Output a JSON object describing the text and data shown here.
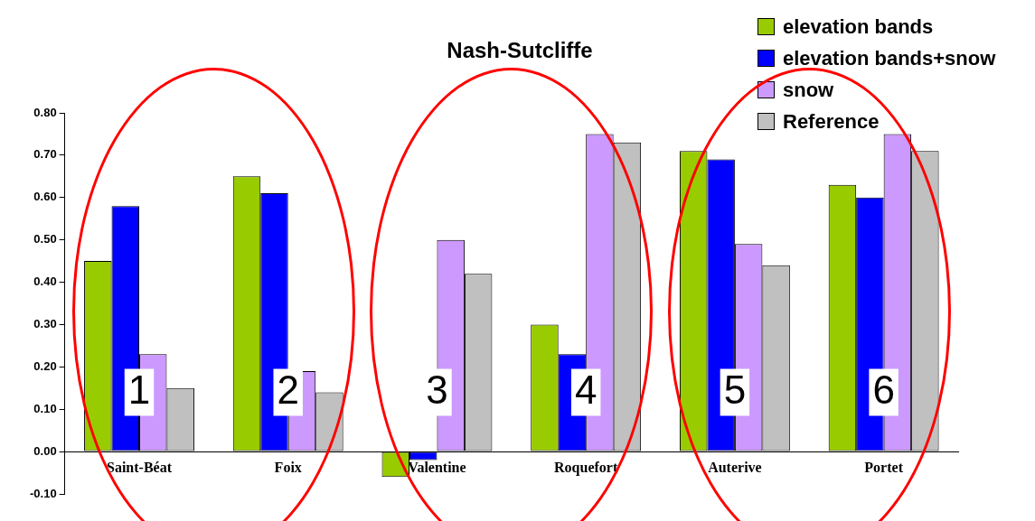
{
  "chart_data": {
    "type": "bar",
    "title": "Nash-Sutcliffe",
    "categories": [
      "Saint-Béat",
      "Foix",
      "Valentine",
      "Roquefort",
      "Auterive",
      "Portet"
    ],
    "series": [
      {
        "name": "elevation bands",
        "color": "#99cc00",
        "values": [
          0.45,
          0.65,
          -0.06,
          0.3,
          0.71,
          0.63
        ]
      },
      {
        "name": "elevation bands+snow",
        "color": "#0000ff",
        "values": [
          0.58,
          0.61,
          -0.02,
          0.23,
          0.69,
          0.6
        ]
      },
      {
        "name": "snow",
        "color": "#cc99ff",
        "values": [
          0.23,
          0.19,
          0.5,
          0.75,
          0.49,
          0.75
        ]
      },
      {
        "name": "Reference",
        "color": "#c0c0c0",
        "values": [
          0.15,
          0.14,
          0.42,
          0.73,
          0.44,
          0.71
        ]
      }
    ],
    "ylim": [
      -0.1,
      0.8
    ],
    "yticks": [
      {
        "value": -0.1,
        "label": "-0.10"
      },
      {
        "value": 0,
        "label": "0.00"
      },
      {
        "value": 0.1,
        "label": "0.10"
      },
      {
        "value": 0.2,
        "label": "0.20"
      },
      {
        "value": 0.3,
        "label": "0.30"
      },
      {
        "value": 0.4,
        "label": "0.40"
      },
      {
        "value": 0.5,
        "label": "0.50"
      },
      {
        "value": 0.6,
        "label": "0.60"
      },
      {
        "value": 0.7,
        "label": "0.70"
      },
      {
        "value": 0.8,
        "label": "0.80"
      }
    ],
    "grid": false,
    "legend": "top right",
    "annotations": [
      {
        "text": "1",
        "x": "Saint-Béat",
        "y": 0.14
      },
      {
        "text": "2",
        "x": "Foix",
        "y": 0.14
      },
      {
        "text": "3",
        "x": "Valentine",
        "y": 0.14
      },
      {
        "text": "4",
        "x": "Roquefort",
        "y": 0.14
      },
      {
        "text": "5",
        "x": "Auterive",
        "y": 0.14
      },
      {
        "text": "6",
        "x": "Portet",
        "y": 0.14
      }
    ]
  }
}
